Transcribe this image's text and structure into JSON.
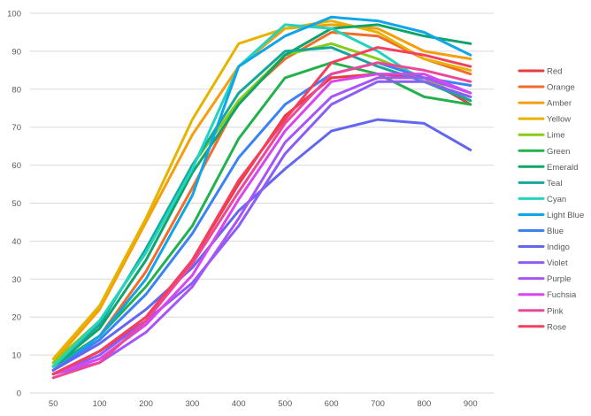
{
  "chart_data": {
    "type": "line",
    "title": "",
    "xlabel": "",
    "ylabel": "",
    "ylim": [
      0,
      100
    ],
    "y_ticks": [
      0,
      10,
      20,
      30,
      40,
      50,
      60,
      70,
      80,
      90,
      100
    ],
    "categories": [
      "50",
      "100",
      "200",
      "300",
      "400",
      "500",
      "600",
      "700",
      "800",
      "900"
    ],
    "grid": "horizontal",
    "legend_position": "right",
    "series": [
      {
        "name": "Red",
        "color": "#e53e3e",
        "values": [
          5,
          11,
          19,
          35,
          55,
          73,
          83,
          84,
          83,
          76
        ]
      },
      {
        "name": "Orange",
        "color": "#f26b2a",
        "values": [
          7,
          15,
          32,
          54,
          77,
          88,
          95,
          94,
          88,
          84
        ]
      },
      {
        "name": "Amber",
        "color": "#f59e0b",
        "values": [
          8,
          22,
          45,
          68,
          86,
          96,
          97,
          96,
          90,
          88
        ]
      },
      {
        "name": "Yellow",
        "color": "#e6b400",
        "values": [
          9,
          23,
          46,
          72,
          92,
          96,
          98,
          95,
          88,
          85
        ]
      },
      {
        "name": "Lime",
        "color": "#84cc16",
        "values": [
          8,
          19,
          37,
          60,
          77,
          89,
          92,
          88,
          83,
          77
        ]
      },
      {
        "name": "Green",
        "color": "#22b14c",
        "values": [
          7,
          15,
          28,
          44,
          67,
          83,
          87,
          84,
          78,
          76
        ]
      },
      {
        "name": "Emerald",
        "color": "#10a36a",
        "values": [
          7,
          17,
          35,
          58,
          76,
          89,
          96,
          97,
          94,
          92
        ]
      },
      {
        "name": "Teal",
        "color": "#14a89a",
        "values": [
          7,
          18,
          38,
          60,
          79,
          90,
          91,
          86,
          82,
          77
        ]
      },
      {
        "name": "Cyan",
        "color": "#22d3c0",
        "values": [
          7,
          19,
          37,
          59,
          86,
          97,
          96,
          90,
          82,
          78
        ]
      },
      {
        "name": "Light Blue",
        "color": "#0ea5e9",
        "values": [
          6,
          15,
          30,
          52,
          86,
          94,
          99,
          98,
          95,
          89
        ]
      },
      {
        "name": "Blue",
        "color": "#3b82f6",
        "values": [
          6,
          14,
          26,
          42,
          62,
          76,
          84,
          87,
          83,
          81
        ]
      },
      {
        "name": "Indigo",
        "color": "#6366f1",
        "values": [
          6,
          13,
          22,
          33,
          48,
          59,
          69,
          72,
          71,
          64
        ]
      },
      {
        "name": "Violet",
        "color": "#8b5cf6",
        "values": [
          5,
          10,
          19,
          29,
          44,
          63,
          76,
          82,
          82,
          78
        ]
      },
      {
        "name": "Purple",
        "color": "#a855f7",
        "values": [
          5,
          8,
          16,
          28,
          46,
          66,
          78,
          83,
          83,
          79
        ]
      },
      {
        "name": "Fuchsia",
        "color": "#d946ef",
        "values": [
          5,
          9,
          18,
          31,
          51,
          69,
          82,
          84,
          84,
          79
        ]
      },
      {
        "name": "Pink",
        "color": "#ec4899",
        "values": [
          4,
          8,
          19,
          34,
          53,
          71,
          84,
          87,
          85,
          82
        ]
      },
      {
        "name": "Rose",
        "color": "#f43f5e",
        "values": [
          5,
          11,
          20,
          35,
          56,
          72,
          87,
          91,
          89,
          86
        ]
      }
    ]
  },
  "colors": {
    "gridline": "#d9d9d9",
    "tick_text": "#595959"
  }
}
